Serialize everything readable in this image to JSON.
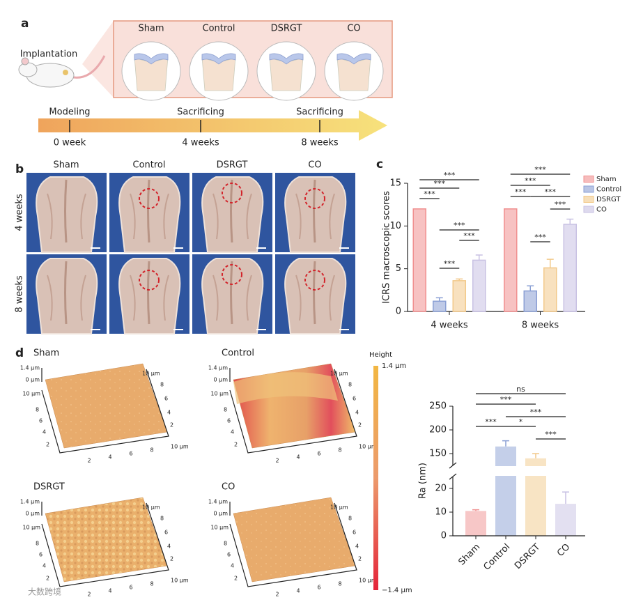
{
  "panel_a": {
    "label": "a",
    "implantation": "Implantation",
    "groups": [
      "Sham",
      "Control",
      "DSRGT",
      "CO"
    ],
    "timeline": [
      {
        "event": "Modeling",
        "time": "0 week"
      },
      {
        "event": "Sacrificing",
        "time": "4 weeks"
      },
      {
        "event": "Sacrificing",
        "time": "8 weeks"
      }
    ]
  },
  "panel_b": {
    "label": "b",
    "columns": [
      "Sham",
      "Control",
      "DSRGT",
      "CO"
    ],
    "rows": [
      "4 weeks",
      "8 weeks"
    ]
  },
  "panel_d": {
    "label": "d",
    "afm": [
      {
        "title": "Sham"
      },
      {
        "title": "Control"
      },
      {
        "title": "DSRGT"
      },
      {
        "title": "CO"
      }
    ],
    "afm_axes": {
      "z_ticks": [
        "1.4 µm",
        "0 µm"
      ],
      "xy_max": "10 µm",
      "xy_ticks": [
        "2",
        "4",
        "6",
        "8"
      ]
    },
    "colorbar": {
      "title": "Height",
      "max": "1.4 µm",
      "min": "−1.4 µm"
    }
  },
  "chart_data": [
    {
      "type": "bar",
      "panel_label": "c",
      "y_label": "ICRS macroscopic scores",
      "categories": [
        "4 weeks",
        "8 weeks"
      ],
      "ylim": [
        0,
        15
      ],
      "yticks": [
        0,
        5,
        10,
        15
      ],
      "legend": "top-right",
      "series": [
        {
          "name": "Sham",
          "color": "#f08f8f",
          "values": [
            12,
            12
          ]
        },
        {
          "name": "Control",
          "color": "#8a9fd4",
          "values": [
            1.2,
            2.4
          ],
          "errors": [
            0.4,
            0.6
          ]
        },
        {
          "name": "DSRGT",
          "color": "#f2c98a",
          "values": [
            3.6,
            5.1
          ],
          "errors": [
            0.2,
            1.0
          ]
        },
        {
          "name": "CO",
          "color": "#c8c1e3",
          "values": [
            6.0,
            10.2
          ],
          "errors": [
            0.6,
            0.6
          ]
        }
      ],
      "comparisons": [
        {
          "category": 0,
          "between": [
            0,
            3
          ],
          "label": "***"
        },
        {
          "category": 0,
          "between": [
            0,
            2
          ],
          "label": "***"
        },
        {
          "category": 0,
          "between": [
            0,
            1
          ],
          "label": "***"
        },
        {
          "category": 0,
          "between": [
            1,
            3
          ],
          "label": "***"
        },
        {
          "category": 0,
          "between": [
            2,
            3
          ],
          "label": "***"
        },
        {
          "category": 0,
          "between": [
            1,
            2
          ],
          "label": "***"
        },
        {
          "category": 1,
          "between": [
            0,
            3
          ],
          "label": "***"
        },
        {
          "category": 1,
          "between": [
            0,
            2
          ],
          "label": "***"
        },
        {
          "category": 1,
          "between": [
            0,
            1
          ],
          "label": "***"
        },
        {
          "category": 1,
          "between": [
            1,
            3
          ],
          "label": "***"
        },
        {
          "category": 1,
          "between": [
            2,
            3
          ],
          "label": "***"
        },
        {
          "category": 1,
          "between": [
            1,
            2
          ],
          "label": "***"
        }
      ]
    },
    {
      "type": "broken-bar",
      "y_label": "Ra (nm)",
      "categories": [
        "Sham",
        "Control",
        "DSRGT",
        "CO"
      ],
      "colors": [
        "#f08f8f",
        "#8a9fd4",
        "#f2c98a",
        "#c8c1e3"
      ],
      "values": [
        10.5,
        165,
        140,
        13.5
      ],
      "errors": [
        0.5,
        12,
        10,
        5
      ],
      "ylim": [
        0,
        250
      ],
      "ybreak": [
        25,
        125
      ],
      "yticks": [
        0,
        10,
        20,
        150,
        200,
        250
      ],
      "comparisons": [
        {
          "between": [
            0,
            3
          ],
          "label": "ns"
        },
        {
          "between": [
            0,
            2
          ],
          "label": "***"
        },
        {
          "between": [
            1,
            3
          ],
          "label": "***"
        },
        {
          "between": [
            0,
            1
          ],
          "label": "***"
        },
        {
          "between": [
            1,
            2
          ],
          "label": "*"
        },
        {
          "between": [
            2,
            3
          ],
          "label": "***"
        }
      ]
    }
  ],
  "watermark": "大数跨境"
}
